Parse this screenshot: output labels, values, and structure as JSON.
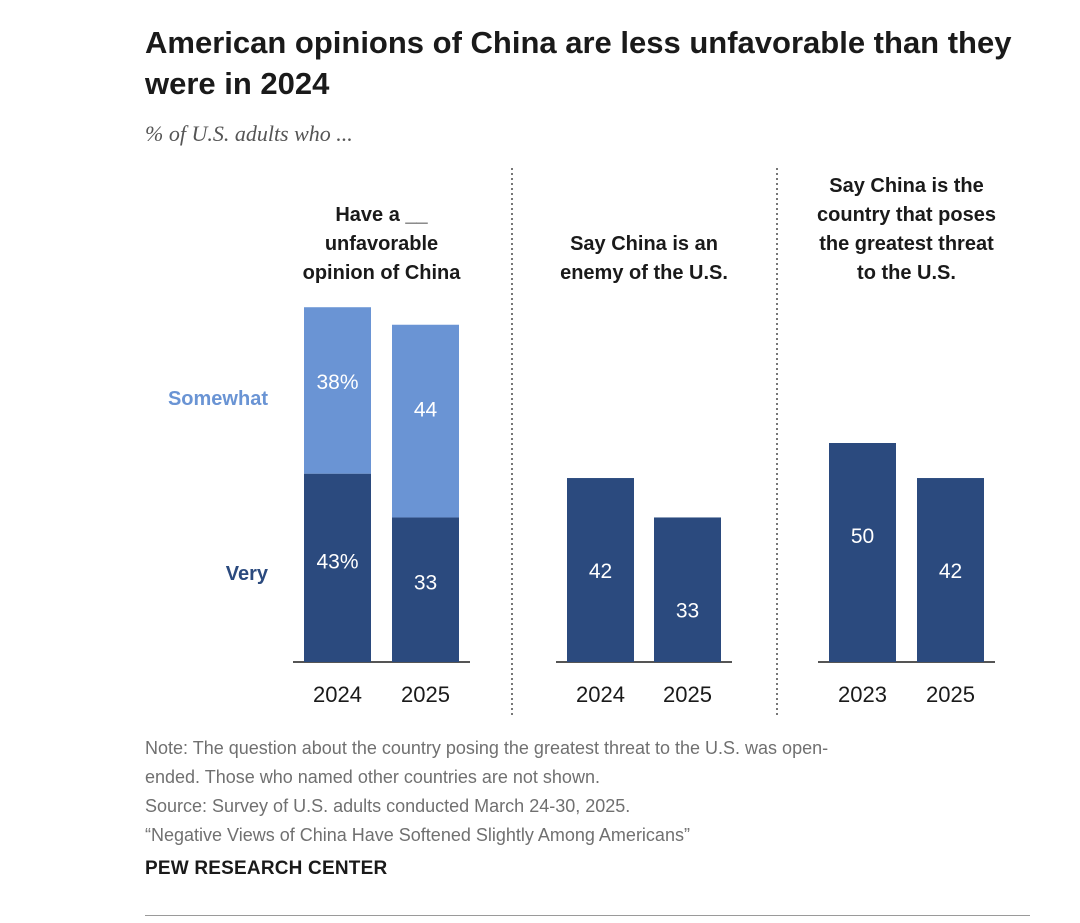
{
  "header": {
    "title": "American opinions of China are less unfavorable than they were in 2024",
    "subtitle": "% of U.S. adults who ..."
  },
  "chart_data": {
    "type": "bar",
    "colors": {
      "very": "#2b4a7e",
      "somewhat": "#6a94d4",
      "axis": "#555555",
      "label_text": "#ffffff"
    },
    "legend": [
      {
        "key": "somewhat",
        "label": "Somewhat",
        "color": "#6a94d4"
      },
      {
        "key": "very",
        "label": "Very",
        "color": "#2b4a7e"
      }
    ],
    "ylim": [
      0,
      82
    ],
    "panels": [
      {
        "title": "Have a __ unfavorable opinion of China",
        "title_lines": [
          "Have a __",
          "unfavorable",
          "opinion of China"
        ],
        "stacked": true,
        "bars": [
          {
            "year": "2024",
            "very": 43,
            "very_label": "43%",
            "somewhat": 38,
            "somewhat_label": "38%"
          },
          {
            "year": "2025",
            "very": 33,
            "very_label": "33",
            "somewhat": 44,
            "somewhat_label": "44"
          }
        ]
      },
      {
        "title": "Say China is an enemy of the U.S.",
        "title_lines": [
          "Say China is an",
          "enemy of the U.S."
        ],
        "stacked": false,
        "bars": [
          {
            "year": "2024",
            "value": 42,
            "label": "42"
          },
          {
            "year": "2025",
            "value": 33,
            "label": "33"
          }
        ]
      },
      {
        "title": "Say China is the country that poses the greatest threat to the U.S.",
        "title_lines": [
          "Say China is the",
          "country that poses",
          "the greatest threat",
          "to the U.S."
        ],
        "stacked": false,
        "bars": [
          {
            "year": "2023",
            "value": 50,
            "label": "50"
          },
          {
            "year": "2025",
            "value": 42,
            "label": "42"
          }
        ]
      }
    ]
  },
  "notes": {
    "line1": "Note: The question about the country posing the greatest threat to the U.S. was open-",
    "line2": "ended. Those who named other countries are not shown.",
    "line3": "Source: Survey of U.S. adults conducted March 24-30, 2025.",
    "line4": "“Negative Views of China Have Softened Slightly Among Americans”"
  },
  "footer": {
    "brand": "PEW RESEARCH CENTER"
  }
}
